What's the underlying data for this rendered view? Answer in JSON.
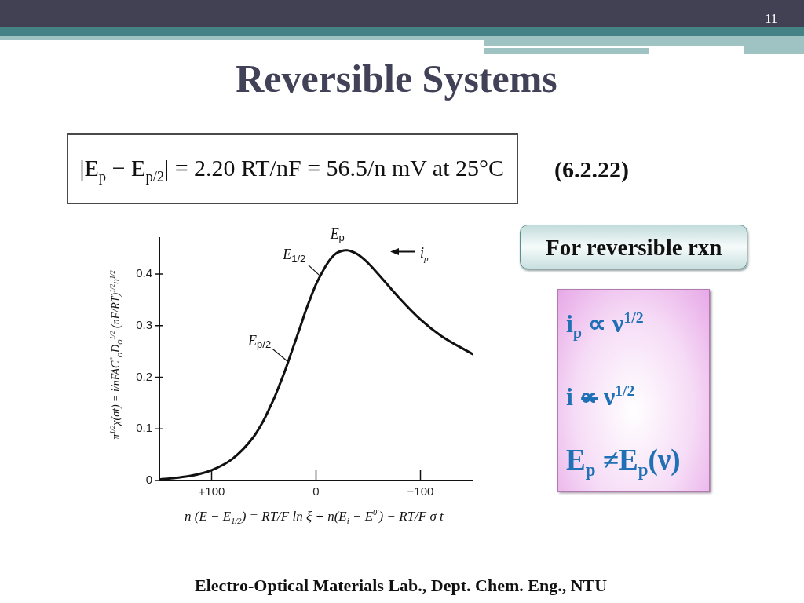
{
  "chart_data": {
    "type": "line",
    "title": "Reversible Systems",
    "xlabel": "n (E − E$_{1/2}$) = RT/F ln ξ + n(E$_{i}$ − E$^{0′}$) − RT/F σ t",
    "ylabel": "π$^{1/2}$χ(σt) = i/nFAC$^{*}$$_{O}$D$_{O}$$^{1/2}$ (nF/RT)$^{1/2}$υ$^{1/2}$",
    "x": [
      150,
      135,
      120,
      100,
      80,
      60,
      50,
      45,
      40,
      35,
      30,
      25,
      20,
      15,
      10,
      5,
      0,
      -5,
      -10,
      -15,
      -20,
      -25,
      -28,
      -30,
      -35,
      -40,
      -50,
      -60,
      -80,
      -100,
      -120,
      -150
    ],
    "values": [
      0.002,
      0.005,
      0.009,
      0.02,
      0.042,
      0.084,
      0.117,
      0.138,
      0.16,
      0.185,
      0.211,
      0.24,
      0.269,
      0.298,
      0.328,
      0.355,
      0.38,
      0.4,
      0.418,
      0.432,
      0.441,
      0.445,
      0.446,
      0.446,
      0.443,
      0.438,
      0.421,
      0.399,
      0.353,
      0.312,
      0.28,
      0.245
    ],
    "color": "#111111",
    "xlim": [
      150,
      -150
    ],
    "xticks": [
      {
        "value": 100,
        "label": "+100"
      },
      0,
      {
        "value": -100,
        "label": "−100"
      }
    ],
    "ylim": [
      0,
      0.47
    ],
    "yticks": [
      0,
      0.1,
      0.2,
      0.3,
      0.4
    ],
    "annotations": [
      "11",
      "|E$_{p}$ − E$_{p/2}$| = 2.20 RT/nF = 56.5/n mV at 25°C",
      "(6.2.22)",
      "For reversible rxn",
      "i$_{p}$ ∝ ν$^{1/2}$",
      "i ∝̶ ν$^{1/2}$",
      "E$_{p}$ ≠E$_{p}$(ν)",
      "Electro-Optical Materials Lab., Dept. Chem. Eng., NTU",
      "i$_{p}$",
      {
        "text": "E$_{p}$",
        "x": -28,
        "y": 0.446
      },
      {
        "text": "E$_{1/2}$",
        "x": -4,
        "y": 0.396
      },
      {
        "text": "E$_{p/2}$",
        "x": 27,
        "y": 0.23
      }
    ]
  }
}
